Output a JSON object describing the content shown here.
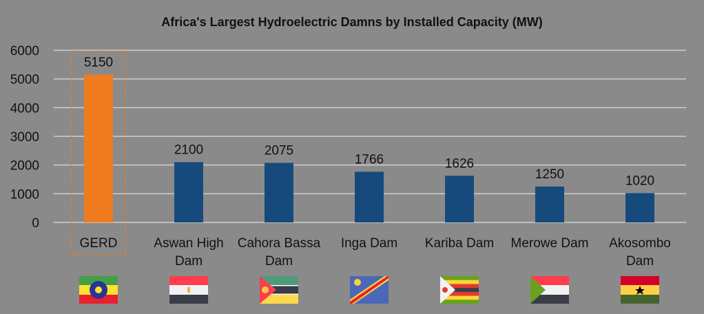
{
  "chart_data": {
    "type": "bar",
    "title": "Africa's Largest Hydroelectric Damns by Installed Capacity (MW)",
    "categories": [
      "GERD",
      "Aswan High Dam",
      "Cahora Bassa Dam",
      "Inga Dam",
      "Kariba Dam",
      "Merowe Dam",
      "Akosombo Dam"
    ],
    "category_lines": [
      [
        "GERD"
      ],
      [
        "Aswan High",
        "Dam"
      ],
      [
        "Cahora Bassa",
        "Dam"
      ],
      [
        "Inga Dam"
      ],
      [
        "Kariba Dam"
      ],
      [
        "Merowe Dam"
      ],
      [
        "Akosombo",
        "Dam"
      ]
    ],
    "values": [
      5150,
      2100,
      2075,
      1766,
      1626,
      1250,
      1020
    ],
    "ylim": [
      0,
      6000
    ],
    "yticks": [
      0,
      1000,
      2000,
      3000,
      4000,
      5000,
      6000
    ],
    "grid": true,
    "highlight_index": 0,
    "colors": {
      "highlight": "#f07b1e",
      "bar": "#174a7c",
      "grid": "#d0d0d0"
    },
    "flags": [
      "ethiopia-flag",
      "egypt-flag",
      "mozambique-flag",
      "dr-congo-flag",
      "zimbabwe-flag",
      "sudan-flag",
      "ghana-flag"
    ]
  }
}
